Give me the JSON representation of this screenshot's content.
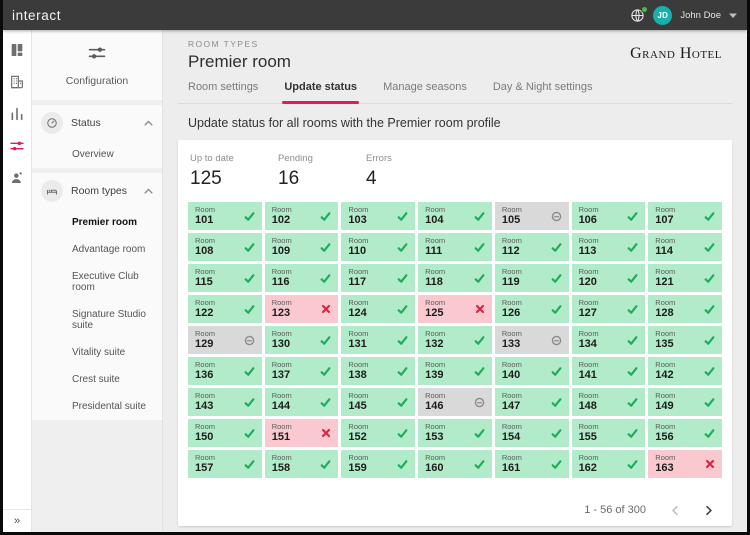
{
  "colors": {
    "accent": "#e5175e",
    "topbar_bg": "#3b3b3b",
    "avatar_bg": "#16b0ad",
    "online_dot": "#43bf4d",
    "ok_bg": "#b1ebca",
    "ok_icon": "#1fad5c",
    "pending_bg": "#d9d9d9",
    "pending_icon": "#8a8a8a",
    "error_bg": "#f9c9cf",
    "error_icon": "#e02243"
  },
  "topbar": {
    "brand": "interact",
    "globe_icon": "globe-icon",
    "user_initials": "JD",
    "user_name": "John Doe"
  },
  "rail": {
    "items": [
      {
        "icon": "dashboard-icon",
        "active": false
      },
      {
        "icon": "property-icon",
        "active": false
      },
      {
        "icon": "reports-icon",
        "active": false
      },
      {
        "icon": "configuration-icon",
        "active": true
      },
      {
        "icon": "guests-icon",
        "active": false
      }
    ],
    "collapse_glyph": "»"
  },
  "sidebar": {
    "title": "Configuration",
    "title_icon": "configuration-icon",
    "sections": [
      {
        "label": "Status",
        "icon": "gauge-icon",
        "expanded": true,
        "items": [
          {
            "label": "Overview",
            "active": false
          }
        ]
      },
      {
        "label": "Room types",
        "icon": "bed-icon",
        "expanded": true,
        "items": [
          {
            "label": "Premier room",
            "active": true
          },
          {
            "label": "Advantage room",
            "active": false
          },
          {
            "label": "Executive Club room",
            "active": false
          },
          {
            "label": "Signature Studio suite",
            "active": false
          },
          {
            "label": "Vitality suite",
            "active": false
          },
          {
            "label": "Crest suite",
            "active": false
          },
          {
            "label": "Presidental suite",
            "active": false
          }
        ]
      }
    ]
  },
  "header": {
    "eyebrow": "ROOM TYPES",
    "title": "Premier room",
    "logo_text": "Grand Hotel"
  },
  "tabs": [
    {
      "label": "Room settings",
      "active": false
    },
    {
      "label": "Update status",
      "active": true
    },
    {
      "label": "Manage seasons",
      "active": false
    },
    {
      "label": "Day & Night settings",
      "active": false
    }
  ],
  "section_title": "Update status for all rooms with the Premier room profile",
  "stats": [
    {
      "label": "Up to date",
      "value": "125"
    },
    {
      "label": "Pending",
      "value": "16"
    },
    {
      "label": "Errors",
      "value": "4"
    }
  ],
  "grid": {
    "cell_label": "Room",
    "status_icons": {
      "ok": "check-icon",
      "pending": "clock-icon",
      "error": "cross-icon"
    },
    "rooms": [
      {
        "number": "101",
        "status": "ok"
      },
      {
        "number": "102",
        "status": "ok"
      },
      {
        "number": "103",
        "status": "ok"
      },
      {
        "number": "104",
        "status": "ok"
      },
      {
        "number": "105",
        "status": "pending"
      },
      {
        "number": "106",
        "status": "ok"
      },
      {
        "number": "107",
        "status": "ok"
      },
      {
        "number": "108",
        "status": "ok"
      },
      {
        "number": "109",
        "status": "ok"
      },
      {
        "number": "110",
        "status": "ok"
      },
      {
        "number": "111",
        "status": "ok"
      },
      {
        "number": "112",
        "status": "ok"
      },
      {
        "number": "113",
        "status": "ok"
      },
      {
        "number": "114",
        "status": "ok"
      },
      {
        "number": "115",
        "status": "ok"
      },
      {
        "number": "116",
        "status": "ok"
      },
      {
        "number": "117",
        "status": "ok"
      },
      {
        "number": "118",
        "status": "ok"
      },
      {
        "number": "119",
        "status": "ok"
      },
      {
        "number": "120",
        "status": "ok"
      },
      {
        "number": "121",
        "status": "ok"
      },
      {
        "number": "122",
        "status": "ok"
      },
      {
        "number": "123",
        "status": "error"
      },
      {
        "number": "124",
        "status": "ok"
      },
      {
        "number": "125",
        "status": "error"
      },
      {
        "number": "126",
        "status": "ok"
      },
      {
        "number": "127",
        "status": "ok"
      },
      {
        "number": "128",
        "status": "ok"
      },
      {
        "number": "129",
        "status": "pending"
      },
      {
        "number": "130",
        "status": "ok"
      },
      {
        "number": "131",
        "status": "ok"
      },
      {
        "number": "132",
        "status": "ok"
      },
      {
        "number": "133",
        "status": "pending"
      },
      {
        "number": "134",
        "status": "ok"
      },
      {
        "number": "135",
        "status": "ok"
      },
      {
        "number": "136",
        "status": "ok"
      },
      {
        "number": "137",
        "status": "ok"
      },
      {
        "number": "138",
        "status": "ok"
      },
      {
        "number": "139",
        "status": "ok"
      },
      {
        "number": "140",
        "status": "ok"
      },
      {
        "number": "141",
        "status": "ok"
      },
      {
        "number": "142",
        "status": "ok"
      },
      {
        "number": "143",
        "status": "ok"
      },
      {
        "number": "144",
        "status": "ok"
      },
      {
        "number": "145",
        "status": "ok"
      },
      {
        "number": "146",
        "status": "pending"
      },
      {
        "number": "147",
        "status": "ok"
      },
      {
        "number": "148",
        "status": "ok"
      },
      {
        "number": "149",
        "status": "ok"
      },
      {
        "number": "150",
        "status": "ok"
      },
      {
        "number": "151",
        "status": "error"
      },
      {
        "number": "152",
        "status": "ok"
      },
      {
        "number": "153",
        "status": "ok"
      },
      {
        "number": "154",
        "status": "ok"
      },
      {
        "number": "155",
        "status": "ok"
      },
      {
        "number": "156",
        "status": "ok"
      },
      {
        "number": "157",
        "status": "ok"
      },
      {
        "number": "158",
        "status": "ok"
      },
      {
        "number": "159",
        "status": "ok"
      },
      {
        "number": "160",
        "status": "ok"
      },
      {
        "number": "161",
        "status": "ok"
      },
      {
        "number": "162",
        "status": "ok"
      },
      {
        "number": "163",
        "status": "error"
      }
    ]
  },
  "pagination": {
    "range_text": "1 - 56 of 300",
    "prev_icon": "chevron-left-icon",
    "next_icon": "chevron-right-icon"
  }
}
